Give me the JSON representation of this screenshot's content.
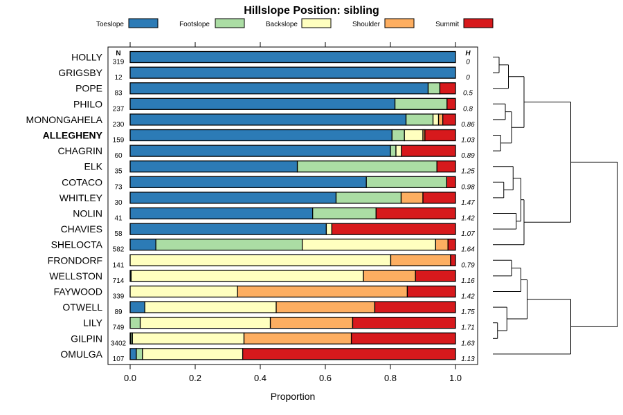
{
  "chart_data": {
    "type": "bar",
    "orientation": "horizontal",
    "stacked": true,
    "title": "Hillslope Position: sibling",
    "xlabel": "Proportion",
    "ylabel": "",
    "xlim": [
      0,
      1
    ],
    "x_ticks": [
      "0.0",
      "0.2",
      "0.4",
      "0.6",
      "0.8",
      "1.0"
    ],
    "n_header": "N",
    "h_header": "H",
    "highlight": "ALLEGHENY",
    "legend": [
      {
        "name": "Toeslope",
        "color": "#2c7bb6"
      },
      {
        "name": "Footslope",
        "color": "#abdda4"
      },
      {
        "name": "Backslope",
        "color": "#ffffbf"
      },
      {
        "name": "Shoulder",
        "color": "#fdae61"
      },
      {
        "name": "Summit",
        "color": "#d7191c"
      }
    ],
    "rows": [
      {
        "name": "HOLLY",
        "n": "319",
        "h": "0",
        "values": [
          1.0,
          0,
          0,
          0,
          0
        ]
      },
      {
        "name": "GRIGSBY",
        "n": "12",
        "h": "0",
        "values": [
          1.0,
          0,
          0,
          0,
          0
        ]
      },
      {
        "name": "POPE",
        "n": "83",
        "h": "0.5",
        "values": [
          0.916,
          0.036,
          0,
          0,
          0.048
        ]
      },
      {
        "name": "PHILO",
        "n": "237",
        "h": "0.8",
        "values": [
          0.814,
          0.16,
          0,
          0,
          0.026
        ]
      },
      {
        "name": "MONONGAHELA",
        "n": "230",
        "h": "0.86",
        "values": [
          0.848,
          0.083,
          0.017,
          0.013,
          0.039
        ]
      },
      {
        "name": "ALLEGHENY",
        "n": "159",
        "h": "1.03",
        "values": [
          0.805,
          0.038,
          0.057,
          0.006,
          0.094
        ]
      },
      {
        "name": "CHAGRIN",
        "n": "60",
        "h": "0.89",
        "values": [
          0.8,
          0.017,
          0.017,
          0,
          0.166
        ]
      },
      {
        "name": "ELK",
        "n": "35",
        "h": "1.25",
        "values": [
          0.514,
          0.429,
          0,
          0,
          0.057
        ]
      },
      {
        "name": "COTACO",
        "n": "73",
        "h": "0.98",
        "values": [
          0.726,
          0.247,
          0,
          0,
          0.027
        ]
      },
      {
        "name": "WHITLEY",
        "n": "30",
        "h": "1.47",
        "values": [
          0.633,
          0.2,
          0,
          0.067,
          0.1
        ]
      },
      {
        "name": "NOLIN",
        "n": "41",
        "h": "1.42",
        "values": [
          0.561,
          0.195,
          0,
          0,
          0.244
        ]
      },
      {
        "name": "CHAVIES",
        "n": "58",
        "h": "1.07",
        "values": [
          0.603,
          0,
          0.017,
          0,
          0.38
        ]
      },
      {
        "name": "SHELOCTA",
        "n": "582",
        "h": "1.64",
        "values": [
          0.079,
          0.45,
          0.41,
          0.038,
          0.023
        ]
      },
      {
        "name": "FRONDORF",
        "n": "141",
        "h": "0.79",
        "values": [
          0,
          0,
          0.801,
          0.184,
          0.015
        ]
      },
      {
        "name": "WELLSTON",
        "n": "714",
        "h": "1.16",
        "values": [
          0.003,
          0,
          0.714,
          0.16,
          0.123
        ]
      },
      {
        "name": "FAYWOOD",
        "n": "339",
        "h": "1.42",
        "values": [
          0,
          0,
          0.33,
          0.522,
          0.148
        ]
      },
      {
        "name": "OTWELL",
        "n": "89",
        "h": "1.75",
        "values": [
          0.045,
          0,
          0.404,
          0.303,
          0.248
        ]
      },
      {
        "name": "LILY",
        "n": "749",
        "h": "1.71",
        "values": [
          0,
          0.031,
          0.4,
          0.253,
          0.316
        ]
      },
      {
        "name": "GILPIN",
        "n": "3402",
        "h": "1.63",
        "values": [
          0.002,
          0.005,
          0.343,
          0.33,
          0.32
        ]
      },
      {
        "name": "OMULGA",
        "n": "107",
        "h": "1.13",
        "values": [
          0.019,
          0.019,
          0.308,
          0,
          0.654
        ]
      }
    ],
    "dendrogram": {
      "merges": [
        [
          0,
          1,
          0.04
        ],
        [
          -1,
          2,
          0.1
        ],
        [
          3,
          4,
          0.08
        ],
        [
          5,
          6,
          0.05
        ],
        [
          -4,
          -3,
          0.12
        ],
        [
          -2,
          -5,
          0.2
        ],
        [
          8,
          9,
          0.07
        ],
        [
          7,
          -7,
          0.13
        ],
        [
          10,
          11,
          0.15
        ],
        [
          -8,
          -9,
          0.18
        ],
        [
          -10,
          12,
          0.2
        ],
        [
          -6,
          -11,
          0.5
        ],
        [
          13,
          14,
          0.12
        ],
        [
          -13,
          15,
          0.18
        ],
        [
          17,
          18,
          0.03
        ],
        [
          16,
          -15,
          0.09
        ],
        [
          -16,
          -14,
          0.22
        ],
        [
          -17,
          19,
          0.5
        ],
        [
          -12,
          -18,
          0.8
        ]
      ]
    }
  }
}
